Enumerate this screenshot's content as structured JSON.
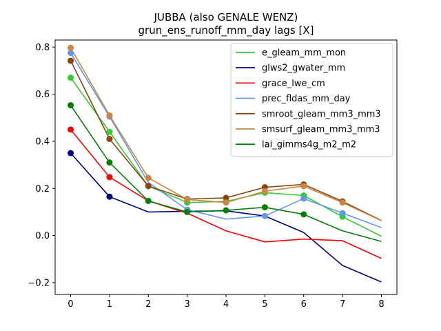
{
  "chart_data": {
    "type": "line",
    "title": "JUBBA (also GENALE WENZ)",
    "subtitle": "grun_ens_runoff_mm_day lags [X]",
    "xlabel": "",
    "ylabel": "",
    "x": [
      0,
      1,
      2,
      3,
      4,
      5,
      6,
      7,
      8
    ],
    "xlim": [
      -0.4,
      8.4
    ],
    "ylim": [
      -0.25,
      0.83
    ],
    "xticks": [
      0,
      1,
      2,
      3,
      4,
      5,
      6,
      7,
      8
    ],
    "yticks": [
      -0.2,
      0.0,
      0.2,
      0.4,
      0.6,
      0.8
    ],
    "ytick_labels": [
      "−0.2",
      "0.0",
      "0.2",
      "0.4",
      "0.6",
      "0.8"
    ],
    "grid": false,
    "legend_position": "top-right",
    "series": [
      {
        "name": "e_gleam_mm_mon",
        "color": "#32cd32",
        "values": [
          0.67,
          0.44,
          0.21,
          0.14,
          0.145,
          0.182,
          0.17,
          0.08,
          -0.003
        ],
        "markers": [
          0,
          1,
          2,
          3,
          4,
          5,
          6,
          7
        ]
      },
      {
        "name": "glws2_gwater_mm",
        "color": "#000080",
        "values": [
          0.35,
          0.165,
          0.1,
          0.103,
          0.105,
          0.083,
          0.013,
          -0.127,
          -0.197
        ],
        "markers": [
          0,
          1
        ]
      },
      {
        "name": "grace_lwe_cm",
        "color": "#ff0000",
        "values": [
          0.45,
          0.248,
          0.147,
          0.095,
          0.02,
          -0.027,
          -0.015,
          -0.022,
          -0.097
        ],
        "markers": [
          0,
          1
        ]
      },
      {
        "name": "prec_fldas_mm_day",
        "color": "#6495ed",
        "values": [
          0.775,
          0.505,
          0.225,
          0.11,
          0.07,
          0.083,
          0.157,
          0.095,
          0.034
        ],
        "markers": [
          0,
          1,
          3,
          5,
          6,
          7
        ]
      },
      {
        "name": "smroot_gleam_mm3_mm3",
        "color": "#8b4513",
        "values": [
          0.742,
          0.41,
          0.21,
          0.155,
          0.16,
          0.205,
          0.217,
          0.145,
          0.064
        ],
        "markers": [
          0,
          1,
          2,
          3,
          4,
          5,
          6,
          7
        ]
      },
      {
        "name": "smsurf_gleam_mm3_mm3",
        "color": "#cd853f",
        "values": [
          0.797,
          0.51,
          0.245,
          0.153,
          0.14,
          0.188,
          0.21,
          0.14,
          0.063
        ],
        "markers": [
          0,
          1,
          2,
          3,
          4,
          5,
          6,
          7
        ]
      },
      {
        "name": "lai_gimms4g_m2_m2",
        "color": "#008000",
        "values": [
          0.553,
          0.31,
          0.147,
          0.1,
          0.107,
          0.12,
          0.09,
          0.02,
          -0.025
        ],
        "markers": [
          0,
          1,
          2,
          3,
          4,
          5,
          6
        ]
      }
    ]
  }
}
